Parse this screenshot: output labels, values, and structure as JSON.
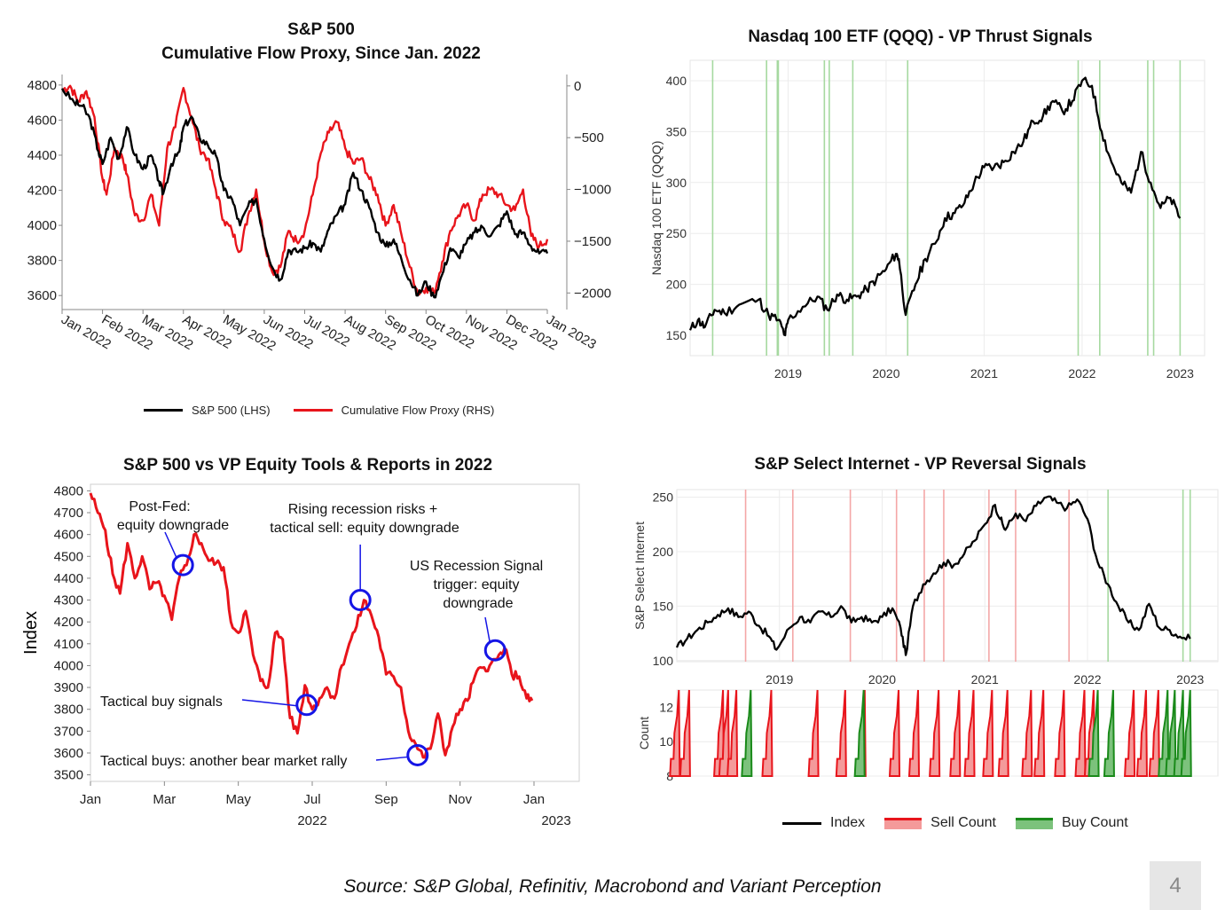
{
  "footer": {
    "source": "Source: S&P Global, Refinitiv, Macrobond and Variant Perception",
    "page_number": "4"
  },
  "colors": {
    "black": "#000000",
    "red": "#e8141b",
    "green": "#1a8a1a",
    "blue": "#1515e6",
    "vline_green": "#a6d9a0",
    "vline_red": "#f4a7a7"
  },
  "chart_data": [
    {
      "id": "sp500-flow",
      "type": "line",
      "title": "S&P 500",
      "subtitle": "Cumulative Flow Proxy, Since Jan. 2022",
      "x_labels": [
        "Jan 2022",
        "Feb 2022",
        "Mar 2022",
        "Apr 2022",
        "May 2022",
        "Jun 2022",
        "Jul 2022",
        "Aug 2022",
        "Sep 2022",
        "Oct 2022",
        "Nov 2022",
        "Dec 2022",
        "Jan 2023"
      ],
      "y_left": {
        "ticks": [
          3600,
          3800,
          4000,
          4200,
          4400,
          4600,
          4800
        ],
        "ylim": [
          3520,
          4860
        ]
      },
      "y_right": {
        "ticks": [
          "0",
          "−500",
          "−1000",
          "−1500",
          "−2000"
        ],
        "tick_values": [
          0,
          -500,
          -1000,
          -1500,
          -2000
        ],
        "ylim": [
          -2160,
          110
        ]
      },
      "series": [
        {
          "name": "S&P 500 (LHS)",
          "color": "#000000",
          "axis": "left",
          "x": [
            0,
            0.3,
            0.5,
            0.7,
            0.9,
            1.0,
            1.2,
            1.4,
            1.6,
            1.8,
            2.0,
            2.2,
            2.4,
            2.5,
            2.7,
            2.9,
            3.0,
            3.2,
            3.4,
            3.6,
            3.8,
            4.0,
            4.2,
            4.4,
            4.6,
            4.8,
            5.0,
            5.2,
            5.4,
            5.6,
            5.8,
            6.0,
            6.2,
            6.4,
            6.6,
            6.8,
            7.0,
            7.2,
            7.4,
            7.6,
            7.8,
            8.0,
            8.2,
            8.4,
            8.6,
            8.8,
            9.0,
            9.2,
            9.4,
            9.6,
            9.8,
            10.0,
            10.2,
            10.4,
            10.6,
            10.8,
            11.0,
            11.2,
            11.4,
            11.6,
            11.8,
            12.0
          ],
          "y": [
            4780,
            4700,
            4680,
            4600,
            4420,
            4350,
            4500,
            4380,
            4560,
            4400,
            4320,
            4400,
            4250,
            4180,
            4350,
            4420,
            4560,
            4620,
            4500,
            4460,
            4400,
            4200,
            4150,
            4000,
            4110,
            4150,
            3920,
            3760,
            3690,
            3860,
            3850,
            3870,
            3900,
            3850,
            3980,
            4060,
            4120,
            4300,
            4200,
            4100,
            3960,
            3880,
            3920,
            3800,
            3690,
            3600,
            3680,
            3590,
            3720,
            3870,
            3820,
            3900,
            3960,
            3990,
            3940,
            4000,
            4080,
            3950,
            3960,
            3880,
            3840,
            3840
          ]
        },
        {
          "name": "Cumulative Flow Proxy (RHS)",
          "color": "#e8141b",
          "axis": "right",
          "x": [
            0,
            0.2,
            0.4,
            0.6,
            0.8,
            1.0,
            1.1,
            1.3,
            1.5,
            1.6,
            1.8,
            2.0,
            2.2,
            2.4,
            2.6,
            2.8,
            3.0,
            3.2,
            3.4,
            3.6,
            3.8,
            4.0,
            4.2,
            4.4,
            4.6,
            4.8,
            5.0,
            5.2,
            5.4,
            5.6,
            5.8,
            6.0,
            6.2,
            6.4,
            6.6,
            6.8,
            7.0,
            7.2,
            7.4,
            7.6,
            7.8,
            8.0,
            8.2,
            8.4,
            8.6,
            8.8,
            9.0,
            9.2,
            9.4,
            9.6,
            9.8,
            10.0,
            10.2,
            10.4,
            10.6,
            10.8,
            11.0,
            11.2,
            11.4,
            11.6,
            11.8,
            12.0
          ],
          "y": [
            -40,
            0,
            -150,
            -50,
            -300,
            -900,
            -1050,
            -600,
            -700,
            -850,
            -1250,
            -1300,
            -1050,
            -1350,
            -600,
            -400,
            -20,
            -300,
            -600,
            -700,
            -1000,
            -1300,
            -1400,
            -1600,
            -1250,
            -1000,
            -1500,
            -1800,
            -1750,
            -1400,
            -1500,
            -1400,
            -1050,
            -650,
            -450,
            -350,
            -600,
            -750,
            -700,
            -900,
            -1050,
            -1350,
            -1150,
            -1450,
            -1750,
            -2000,
            -1950,
            -2000,
            -1700,
            -1400,
            -1250,
            -1150,
            -1300,
            -1050,
            -1000,
            -1050,
            -1150,
            -1200,
            -1000,
            -1450,
            -1550,
            -1480
          ]
        }
      ],
      "legend": [
        "S&P 500 (LHS)",
        "Cumulative Flow Proxy (RHS)"
      ]
    },
    {
      "id": "qqq-thrust",
      "type": "line",
      "title": "Nasdaq 100 ETF (QQQ) - VP Thrust Signals",
      "ylabel": "Nasdaq 100 ETF (QQQ)",
      "x_ticks": [
        "2019",
        "2020",
        "2021",
        "2022",
        "2023"
      ],
      "x_tick_values": [
        2019,
        2020,
        2021,
        2022,
        2023
      ],
      "xlim": [
        2018.0,
        2023.25
      ],
      "ylim": [
        130,
        420
      ],
      "y_ticks": [
        150,
        200,
        250,
        300,
        350,
        400
      ],
      "signal_lines": [
        2018.23,
        2018.78,
        2018.89,
        2018.9,
        2019.37,
        2019.42,
        2019.66,
        2020.22,
        2021.96,
        2022.18,
        2022.67,
        2022.73,
        2023.0
      ],
      "series": [
        {
          "name": "Nasdaq 100 ETF (QQQ)",
          "color": "#000000",
          "x": [
            2018.0,
            2018.08,
            2018.15,
            2018.25,
            2018.35,
            2018.5,
            2018.7,
            2018.8,
            2018.9,
            2018.97,
            2019.0,
            2019.15,
            2019.3,
            2019.4,
            2019.5,
            2019.6,
            2019.7,
            2019.8,
            2019.9,
            2020.0,
            2020.1,
            2020.13,
            2020.2,
            2020.3,
            2020.4,
            2020.5,
            2020.6,
            2020.7,
            2020.8,
            2020.9,
            2021.0,
            2021.1,
            2021.2,
            2021.3,
            2021.4,
            2021.5,
            2021.6,
            2021.7,
            2021.8,
            2021.9,
            2022.0,
            2022.1,
            2022.2,
            2022.3,
            2022.4,
            2022.5,
            2022.6,
            2022.7,
            2022.8,
            2022.9,
            2023.0
          ],
          "y": [
            155,
            165,
            158,
            175,
            172,
            180,
            185,
            170,
            165,
            150,
            165,
            178,
            188,
            175,
            190,
            185,
            188,
            195,
            205,
            215,
            230,
            225,
            170,
            200,
            225,
            240,
            265,
            270,
            280,
            300,
            315,
            315,
            320,
            330,
            340,
            360,
            365,
            380,
            370,
            380,
            400,
            395,
            350,
            320,
            300,
            290,
            330,
            300,
            275,
            285,
            265
          ]
        }
      ]
    },
    {
      "id": "sp500-vp-tools",
      "type": "line",
      "title": "S&P 500 vs VP Equity Tools & Reports in 2022",
      "ylabel": "Index",
      "x_ticks": [
        "Jan",
        "Mar",
        "May",
        "Jul",
        "Sep",
        "Nov",
        "Jan"
      ],
      "x_tick_values": [
        0,
        2,
        4,
        6,
        8,
        10,
        12
      ],
      "x_year_labels": [
        "2022",
        "2023"
      ],
      "xlim": [
        0,
        13.2
      ],
      "ylim": [
        3470,
        4830
      ],
      "y_ticks": [
        3500,
        3600,
        3700,
        3800,
        3900,
        4000,
        4100,
        4200,
        4300,
        4400,
        4500,
        4600,
        4700,
        4800
      ],
      "series": [
        {
          "name": "Index",
          "color": "#e8141b",
          "x": [
            0,
            0.2,
            0.4,
            0.6,
            0.8,
            1.0,
            1.2,
            1.4,
            1.6,
            1.8,
            2.0,
            2.2,
            2.4,
            2.6,
            2.8,
            3.0,
            3.2,
            3.4,
            3.6,
            3.8,
            4.0,
            4.2,
            4.4,
            4.6,
            4.8,
            5.0,
            5.2,
            5.4,
            5.6,
            5.8,
            6.0,
            6.2,
            6.4,
            6.6,
            6.8,
            7.0,
            7.2,
            7.4,
            7.6,
            7.8,
            8.0,
            8.2,
            8.4,
            8.6,
            8.8,
            9.0,
            9.2,
            9.4,
            9.6,
            9.8,
            10.0,
            10.2,
            10.4,
            10.6,
            10.8,
            11.0,
            11.2,
            11.4,
            11.6,
            11.8,
            11.95
          ],
          "y": [
            4790,
            4700,
            4620,
            4420,
            4330,
            4560,
            4400,
            4500,
            4350,
            4380,
            4320,
            4210,
            4400,
            4460,
            4600,
            4560,
            4480,
            4470,
            4450,
            4200,
            4150,
            4250,
            4050,
            3930,
            3900,
            4150,
            4120,
            3760,
            3690,
            3910,
            3800,
            3850,
            3900,
            3850,
            4000,
            4100,
            4180,
            4300,
            4230,
            4130,
            3960,
            3950,
            3900,
            3700,
            3640,
            3580,
            3620,
            3780,
            3590,
            3720,
            3800,
            3840,
            3950,
            3990,
            4000,
            4030,
            4080,
            3960,
            3950,
            3850,
            3840
          ]
        }
      ],
      "annotations": [
        {
          "text": [
            "Post-Fed:",
            "equity downgrade"
          ],
          "x": 2.5,
          "y": 4460
        },
        {
          "text": [
            "Rising recession risks +",
            "tactical sell: equity downgrade"
          ],
          "x": 7.3,
          "y": 4300
        },
        {
          "text": [
            "US Recession Signal",
            "trigger: equity",
            "downgrade"
          ],
          "x": 10.95,
          "y": 4070
        },
        {
          "text": [
            "Tactical buy signals"
          ],
          "x": 5.85,
          "y": 3820
        },
        {
          "text": [
            "Tactical buys: another bear market rally"
          ],
          "x": 8.85,
          "y": 3590
        }
      ]
    },
    {
      "id": "sp-internet-reversal",
      "type": "line",
      "title": "S&P Select Internet - VP Reversal Signals",
      "ylabel": "S&P Select Internet",
      "ylabel_count": "Count",
      "x_ticks": [
        "2019",
        "2020",
        "2021",
        "2022",
        "2023"
      ],
      "x_tick_values": [
        2019,
        2020,
        2021,
        2022,
        2023
      ],
      "xlim": [
        2018.0,
        2023.27
      ],
      "ylim": [
        99,
        257
      ],
      "y_ticks": [
        100,
        150,
        200,
        250
      ],
      "count_ylim": [
        8,
        13
      ],
      "count_ticks": [
        8,
        10,
        12
      ],
      "sell_lines": [
        2018.67,
        2019.13,
        2019.69,
        2020.14,
        2020.41,
        2020.6,
        2021.04,
        2021.3,
        2021.82
      ],
      "buy_lines": [
        2022.2,
        2022.93,
        2023.0
      ],
      "series": [
        {
          "name": "Index",
          "color": "#000000",
          "x": [
            2018.0,
            2018.1,
            2018.2,
            2018.3,
            2018.4,
            2018.5,
            2018.6,
            2018.7,
            2018.8,
            2018.9,
            2018.97,
            2019.1,
            2019.2,
            2019.3,
            2019.4,
            2019.5,
            2019.6,
            2019.7,
            2019.8,
            2019.9,
            2020.0,
            2020.1,
            2020.18,
            2020.23,
            2020.3,
            2020.4,
            2020.5,
            2020.6,
            2020.7,
            2020.8,
            2020.9,
            2021.0,
            2021.1,
            2021.15,
            2021.2,
            2021.3,
            2021.4,
            2021.5,
            2021.6,
            2021.7,
            2021.8,
            2021.9,
            2022.0,
            2022.1,
            2022.2,
            2022.3,
            2022.4,
            2022.5,
            2022.6,
            2022.7,
            2022.8,
            2022.9,
            2023.0
          ],
          "y": [
            112,
            120,
            128,
            135,
            142,
            148,
            140,
            145,
            132,
            122,
            110,
            130,
            140,
            135,
            145,
            140,
            150,
            135,
            140,
            135,
            140,
            148,
            130,
            105,
            150,
            170,
            180,
            190,
            188,
            198,
            210,
            225,
            243,
            230,
            220,
            235,
            228,
            242,
            250,
            245,
            240,
            248,
            230,
            190,
            170,
            150,
            135,
            128,
            152,
            130,
            128,
            122,
            120
          ]
        },
        {
          "name": "Sell Count",
          "color": "#e8141b",
          "bursts": [
            2018.02,
            2018.12,
            2018.45,
            2018.5,
            2018.58,
            2018.92,
            2019.37,
            2019.64,
            2019.83,
            2020.16,
            2020.35,
            2020.55,
            2020.75,
            2020.89,
            2021.07,
            2021.22,
            2021.45,
            2021.57,
            2021.77,
            2021.97,
            2022.06,
            2022.45,
            2022.57,
            2022.69
          ]
        },
        {
          "name": "Buy Count",
          "color": "#1a8a1a",
          "bursts": [
            2018.72,
            2019.82,
            2022.1,
            2022.25,
            2022.78,
            2022.85,
            2022.93,
            2023.0
          ]
        }
      ],
      "legend": [
        "Index",
        "Sell Count",
        "Buy Count"
      ]
    }
  ]
}
